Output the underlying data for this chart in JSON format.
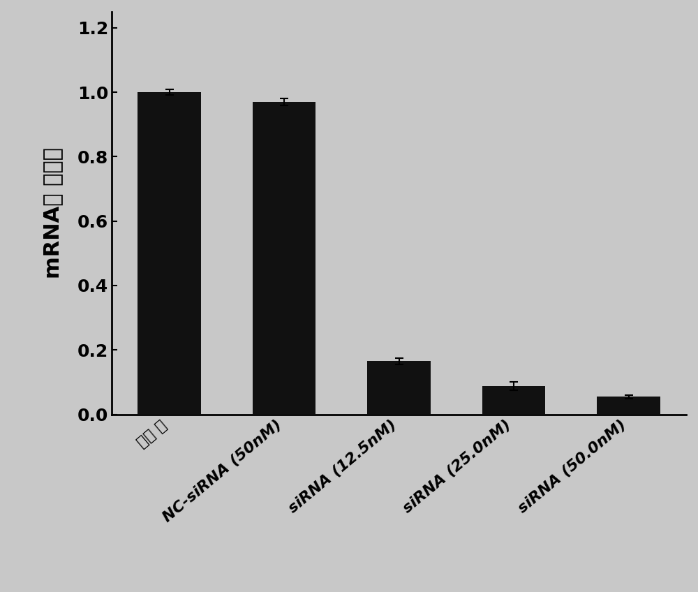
{
  "categories": [
    "未转 染",
    "NC-siRNA (50nM)",
    "siRNA (12.5nM)",
    "siRNA (25.0nM)",
    "siRNA (50.0nM)"
  ],
  "values": [
    1.0,
    0.97,
    0.165,
    0.088,
    0.055
  ],
  "errors": [
    0.008,
    0.01,
    0.01,
    0.012,
    0.005
  ],
  "bar_color": "#111111",
  "background_color": "#c8c8c8",
  "ylabel_part1": "mRNA表",
  "ylabel_part2": "达水平",
  "ylim": [
    0,
    1.25
  ],
  "yticks": [
    0.0,
    0.2,
    0.4,
    0.6,
    0.8,
    1.0,
    1.2
  ],
  "bar_width": 0.55,
  "ylabel_fontsize": 22,
  "tick_fontsize": 18,
  "xtick_fontsize": 16,
  "figure_width": 10.0,
  "figure_height": 8.48
}
